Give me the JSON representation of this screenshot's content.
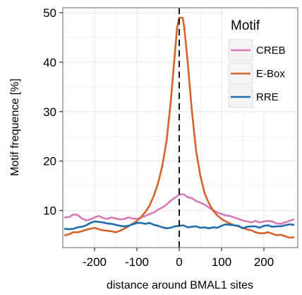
{
  "chart_data": {
    "type": "line",
    "title": "",
    "xlabel": "distance around BMAL1 sites",
    "ylabel": "Motif frequence [%]",
    "xlim": [
      -275,
      280
    ],
    "ylim": [
      2.5,
      51
    ],
    "xticks": [
      -200,
      -100,
      0,
      100,
      200
    ],
    "yticks": [
      10,
      20,
      30,
      40,
      50
    ],
    "grid": true,
    "vline": 0,
    "legend": {
      "title": "Motif",
      "position": "top-right"
    },
    "series": [
      {
        "name": "CREB",
        "color": "#d47bb5",
        "points": [
          [
            -270,
            8.6
          ],
          [
            -260,
            8.7
          ],
          [
            -250,
            9.2
          ],
          [
            -240,
            9.1
          ],
          [
            -230,
            8.4
          ],
          [
            -220,
            8.0
          ],
          [
            -210,
            8.2
          ],
          [
            -200,
            8.6
          ],
          [
            -190,
            8.9
          ],
          [
            -180,
            8.5
          ],
          [
            -170,
            8.3
          ],
          [
            -160,
            8.6
          ],
          [
            -150,
            8.4
          ],
          [
            -140,
            8.2
          ],
          [
            -130,
            8.3
          ],
          [
            -120,
            8.6
          ],
          [
            -110,
            8.4
          ],
          [
            -100,
            8.3
          ],
          [
            -90,
            8.6
          ],
          [
            -80,
            8.9
          ],
          [
            -70,
            9.3
          ],
          [
            -60,
            9.6
          ],
          [
            -50,
            10.2
          ],
          [
            -40,
            10.6
          ],
          [
            -30,
            11.2
          ],
          [
            -20,
            12.0
          ],
          [
            -10,
            12.6
          ],
          [
            0,
            13.2
          ],
          [
            10,
            13.3
          ],
          [
            20,
            12.7
          ],
          [
            30,
            12.5
          ],
          [
            40,
            11.9
          ],
          [
            50,
            11.6
          ],
          [
            60,
            11.2
          ],
          [
            70,
            10.6
          ],
          [
            80,
            10.1
          ],
          [
            90,
            9.6
          ],
          [
            100,
            9.3
          ],
          [
            110,
            9.0
          ],
          [
            120,
            8.9
          ],
          [
            130,
            8.6
          ],
          [
            140,
            8.3
          ],
          [
            150,
            8.0
          ],
          [
            160,
            7.8
          ],
          [
            170,
            7.6
          ],
          [
            180,
            7.9
          ],
          [
            190,
            7.6
          ],
          [
            200,
            7.8
          ],
          [
            210,
            7.9
          ],
          [
            220,
            7.8
          ],
          [
            230,
            7.4
          ],
          [
            240,
            7.3
          ],
          [
            250,
            7.6
          ],
          [
            260,
            7.9
          ],
          [
            270,
            8.2
          ]
        ]
      },
      {
        "name": "E-Box",
        "color": "#d6622c",
        "points": [
          [
            -270,
            5.0
          ],
          [
            -260,
            5.2
          ],
          [
            -250,
            5.6
          ],
          [
            -240,
            5.6
          ],
          [
            -230,
            5.8
          ],
          [
            -220,
            6.1
          ],
          [
            -210,
            6.3
          ],
          [
            -200,
            6.5
          ],
          [
            -190,
            6.2
          ],
          [
            -180,
            6.0
          ],
          [
            -170,
            5.9
          ],
          [
            -160,
            5.8
          ],
          [
            -150,
            5.6
          ],
          [
            -140,
            5.9
          ],
          [
            -130,
            6.3
          ],
          [
            -120,
            6.8
          ],
          [
            -110,
            7.3
          ],
          [
            -100,
            7.9
          ],
          [
            -90,
            8.7
          ],
          [
            -80,
            9.7
          ],
          [
            -70,
            11.0
          ],
          [
            -60,
            13.0
          ],
          [
            -50,
            15.5
          ],
          [
            -40,
            19.0
          ],
          [
            -30,
            24.0
          ],
          [
            -20,
            32.0
          ],
          [
            -10,
            42.0
          ],
          [
            -5,
            47.0
          ],
          [
            0,
            49.0
          ],
          [
            8,
            49.0
          ],
          [
            12,
            47.0
          ],
          [
            20,
            40.0
          ],
          [
            30,
            30.0
          ],
          [
            40,
            22.0
          ],
          [
            50,
            17.0
          ],
          [
            60,
            13.5
          ],
          [
            70,
            11.5
          ],
          [
            80,
            10.0
          ],
          [
            90,
            9.0
          ],
          [
            100,
            8.3
          ],
          [
            110,
            7.8
          ],
          [
            120,
            7.4
          ],
          [
            130,
            7.0
          ],
          [
            140,
            6.8
          ],
          [
            150,
            6.5
          ],
          [
            160,
            6.2
          ],
          [
            170,
            6.0
          ],
          [
            180,
            5.6
          ],
          [
            190,
            5.4
          ],
          [
            200,
            5.4
          ],
          [
            210,
            5.6
          ],
          [
            220,
            5.3
          ],
          [
            230,
            5.0
          ],
          [
            240,
            5.1
          ],
          [
            250,
            4.8
          ],
          [
            260,
            4.5
          ],
          [
            270,
            4.6
          ]
        ]
      },
      {
        "name": "RRE",
        "color": "#1f6fb0",
        "points": [
          [
            -270,
            6.3
          ],
          [
            -260,
            6.2
          ],
          [
            -250,
            6.3
          ],
          [
            -240,
            6.6
          ],
          [
            -230,
            6.7
          ],
          [
            -220,
            7.0
          ],
          [
            -210,
            7.5
          ],
          [
            -200,
            7.8
          ],
          [
            -190,
            7.7
          ],
          [
            -180,
            7.6
          ],
          [
            -170,
            7.4
          ],
          [
            -160,
            7.3
          ],
          [
            -150,
            7.1
          ],
          [
            -140,
            6.9
          ],
          [
            -130,
            6.8
          ],
          [
            -120,
            6.9
          ],
          [
            -110,
            7.2
          ],
          [
            -100,
            7.5
          ],
          [
            -90,
            7.5
          ],
          [
            -80,
            7.3
          ],
          [
            -70,
            7.5
          ],
          [
            -60,
            7.1
          ],
          [
            -50,
            6.9
          ],
          [
            -40,
            6.6
          ],
          [
            -30,
            6.4
          ],
          [
            -20,
            6.5
          ],
          [
            -10,
            6.8
          ],
          [
            0,
            6.9
          ],
          [
            10,
            7.0
          ],
          [
            20,
            6.6
          ],
          [
            30,
            6.7
          ],
          [
            40,
            6.8
          ],
          [
            50,
            6.5
          ],
          [
            60,
            6.6
          ],
          [
            70,
            6.4
          ],
          [
            80,
            6.6
          ],
          [
            90,
            6.5
          ],
          [
            100,
            6.9
          ],
          [
            110,
            7.2
          ],
          [
            120,
            7.1
          ],
          [
            130,
            7.0
          ],
          [
            140,
            6.9
          ],
          [
            150,
            6.4
          ],
          [
            160,
            6.7
          ],
          [
            170,
            6.8
          ],
          [
            180,
            6.8
          ],
          [
            190,
            6.5
          ],
          [
            200,
            6.9
          ],
          [
            210,
            7.0
          ],
          [
            220,
            6.7
          ],
          [
            230,
            6.8
          ],
          [
            240,
            6.8
          ],
          [
            250,
            7.0
          ],
          [
            260,
            7.2
          ],
          [
            270,
            7.1
          ]
        ]
      }
    ]
  }
}
